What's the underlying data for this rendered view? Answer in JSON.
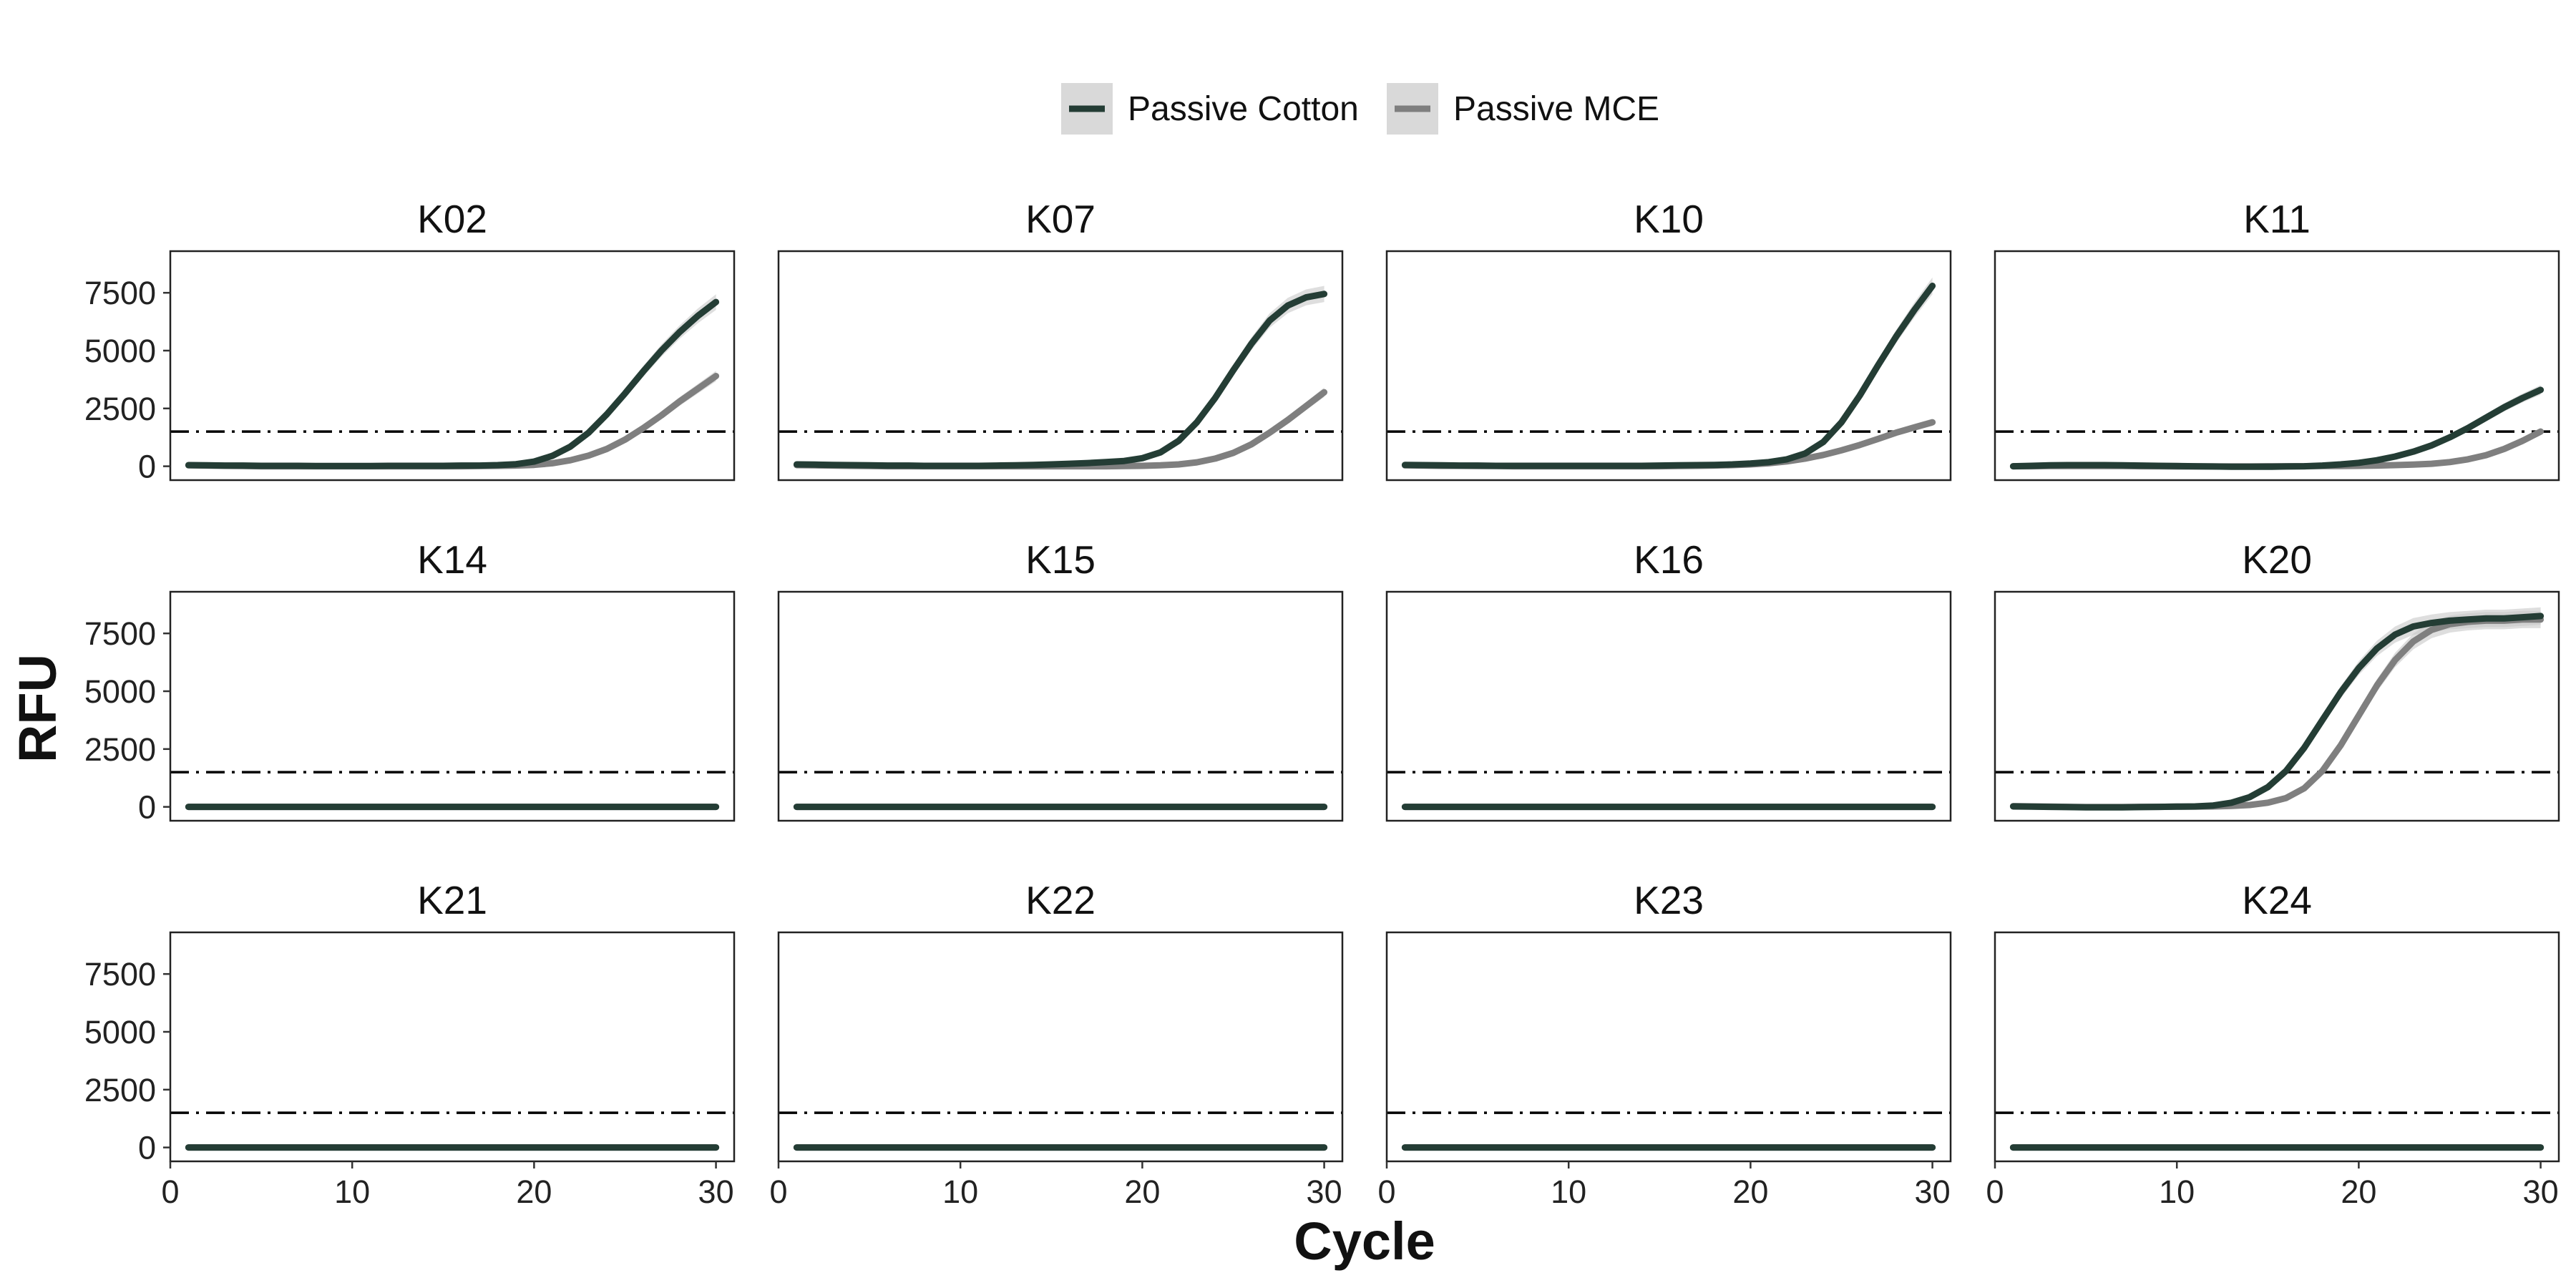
{
  "chart_data": {
    "type": "line",
    "facet_layout": "3 rows x 4 columns",
    "xlabel": "Cycle",
    "ylabel": "RFU",
    "xlim": [
      0,
      31
    ],
    "ylim": [
      -600,
      9300
    ],
    "x_ticks": [
      0,
      10,
      20,
      30
    ],
    "y_ticks": [
      0,
      2500,
      5000,
      7500
    ],
    "threshold": 1500,
    "threshold_style": "dash-dot",
    "legend": {
      "placement": "top-center",
      "items": [
        {
          "name": "Passive Cotton",
          "color": "#243d35"
        },
        {
          "name": "Passive MCE",
          "color": "#7f7f7f"
        }
      ]
    },
    "series_colors": {
      "Passive Cotton": "#243d35",
      "Passive MCE": "#7f7f7f",
      "ribbon": "#c8c8c8"
    },
    "x": [
      1,
      2,
      3,
      4,
      5,
      6,
      7,
      8,
      9,
      10,
      11,
      12,
      13,
      14,
      15,
      16,
      17,
      18,
      19,
      20,
      21,
      22,
      23,
      24,
      25,
      26,
      27,
      28,
      29,
      30
    ],
    "panels": [
      {
        "title": "K02",
        "series": [
          {
            "name": "Passive Cotton",
            "values": [
              50,
              40,
              30,
              30,
              20,
              20,
              20,
              10,
              10,
              10,
              10,
              20,
              20,
              20,
              20,
              30,
              30,
              50,
              90,
              200,
              450,
              850,
              1450,
              2250,
              3150,
              4100,
              5000,
              5800,
              6500,
              7100
            ]
          },
          {
            "name": "Passive MCE",
            "values": [
              40,
              30,
              20,
              10,
              0,
              0,
              0,
              0,
              0,
              0,
              0,
              0,
              0,
              0,
              0,
              0,
              10,
              20,
              30,
              60,
              130,
              260,
              460,
              750,
              1150,
              1650,
              2200,
              2800,
              3350,
              3900
            ]
          }
        ]
      },
      {
        "title": "K07",
        "series": [
          {
            "name": "Passive Cotton",
            "values": [
              80,
              70,
              60,
              50,
              40,
              30,
              30,
              20,
              20,
              20,
              20,
              30,
              40,
              60,
              80,
              110,
              140,
              180,
              230,
              350,
              600,
              1100,
              1900,
              2950,
              4150,
              5300,
              6300,
              6950,
              7300,
              7450
            ]
          },
          {
            "name": "Passive MCE",
            "values": [
              50,
              40,
              30,
              20,
              10,
              0,
              0,
              0,
              0,
              0,
              0,
              0,
              0,
              0,
              0,
              0,
              0,
              0,
              10,
              20,
              40,
              80,
              170,
              330,
              580,
              950,
              1450,
              2000,
              2600,
              3200
            ]
          }
        ]
      },
      {
        "title": "K10",
        "series": [
          {
            "name": "Passive Cotton",
            "values": [
              60,
              50,
              40,
              30,
              30,
              20,
              20,
              20,
              20,
              20,
              20,
              20,
              20,
              20,
              30,
              40,
              50,
              60,
              80,
              120,
              180,
              300,
              550,
              1050,
              1900,
              3050,
              4350,
              5600,
              6750,
              7800
            ]
          },
          {
            "name": "Passive MCE",
            "values": [
              40,
              30,
              20,
              20,
              10,
              10,
              0,
              0,
              0,
              0,
              0,
              0,
              0,
              0,
              0,
              10,
              20,
              30,
              50,
              80,
              130,
              210,
              330,
              490,
              690,
              920,
              1180,
              1450,
              1680,
              1900
            ]
          }
        ]
      },
      {
        "title": "K11",
        "series": [
          {
            "name": "Passive Cotton",
            "values": [
              0,
              20,
              40,
              50,
              50,
              50,
              40,
              30,
              20,
              10,
              0,
              -10,
              -20,
              -20,
              -20,
              -10,
              0,
              30,
              80,
              150,
              260,
              420,
              630,
              900,
              1250,
              1650,
              2100,
              2550,
              2950,
              3300
            ]
          },
          {
            "name": "Passive MCE",
            "values": [
              0,
              0,
              10,
              10,
              10,
              10,
              10,
              0,
              0,
              -10,
              -10,
              -10,
              -10,
              -10,
              0,
              0,
              0,
              10,
              10,
              20,
              30,
              50,
              70,
              110,
              180,
              300,
              480,
              750,
              1100,
              1500
            ]
          }
        ]
      },
      {
        "title": "K14",
        "series": [
          {
            "name": "Passive Cotton",
            "values": [
              0,
              0,
              0,
              0,
              0,
              0,
              0,
              0,
              0,
              0,
              0,
              0,
              0,
              0,
              0,
              0,
              0,
              0,
              0,
              0,
              0,
              0,
              0,
              0,
              0,
              0,
              0,
              0,
              0,
              0
            ]
          },
          {
            "name": "Passive MCE",
            "values": [
              0,
              0,
              0,
              0,
              0,
              0,
              0,
              0,
              0,
              0,
              0,
              0,
              0,
              0,
              0,
              0,
              0,
              0,
              0,
              0,
              0,
              0,
              0,
              0,
              0,
              0,
              0,
              0,
              0,
              0
            ]
          }
        ]
      },
      {
        "title": "K15",
        "series": [
          {
            "name": "Passive Cotton",
            "values": [
              0,
              0,
              0,
              0,
              0,
              0,
              0,
              0,
              0,
              0,
              0,
              0,
              0,
              0,
              0,
              0,
              0,
              0,
              0,
              0,
              0,
              0,
              0,
              0,
              0,
              0,
              0,
              0,
              0,
              0
            ]
          },
          {
            "name": "Passive MCE",
            "values": [
              0,
              0,
              0,
              0,
              0,
              0,
              0,
              0,
              0,
              0,
              0,
              0,
              0,
              0,
              0,
              0,
              0,
              0,
              0,
              0,
              0,
              0,
              0,
              0,
              0,
              0,
              0,
              0,
              0,
              0
            ]
          }
        ]
      },
      {
        "title": "K16",
        "series": [
          {
            "name": "Passive Cotton",
            "values": [
              0,
              0,
              0,
              0,
              0,
              0,
              0,
              0,
              0,
              0,
              0,
              0,
              0,
              0,
              0,
              0,
              0,
              0,
              0,
              0,
              0,
              0,
              0,
              0,
              0,
              0,
              0,
              0,
              0,
              0
            ]
          },
          {
            "name": "Passive MCE",
            "values": [
              0,
              0,
              0,
              0,
              0,
              0,
              0,
              0,
              0,
              0,
              0,
              0,
              0,
              0,
              0,
              0,
              0,
              0,
              0,
              0,
              0,
              0,
              0,
              0,
              0,
              0,
              0,
              0,
              0,
              0
            ]
          }
        ]
      },
      {
        "title": "K20",
        "series": [
          {
            "name": "Passive Cotton",
            "values": [
              20,
              10,
              0,
              -10,
              -20,
              -20,
              -20,
              -10,
              0,
              10,
              20,
              60,
              180,
              420,
              850,
              1550,
              2550,
              3750,
              4950,
              6000,
              6850,
              7450,
              7800,
              7950,
              8050,
              8100,
              8150,
              8150,
              8200,
              8250
            ]
          },
          {
            "name": "Passive MCE",
            "values": [
              30,
              20,
              10,
              0,
              -10,
              -10,
              -10,
              0,
              0,
              10,
              10,
              20,
              40,
              80,
              180,
              380,
              800,
              1550,
              2650,
              3950,
              5250,
              6350,
              7150,
              7650,
              7900,
              8000,
              8050,
              8050,
              8100,
              8100
            ]
          }
        ]
      },
      {
        "title": "K21",
        "series": [
          {
            "name": "Passive Cotton",
            "values": [
              0,
              0,
              0,
              0,
              0,
              0,
              0,
              0,
              0,
              0,
              0,
              0,
              0,
              0,
              0,
              0,
              0,
              0,
              0,
              0,
              0,
              0,
              0,
              0,
              0,
              0,
              0,
              0,
              0,
              0
            ]
          },
          {
            "name": "Passive MCE",
            "values": [
              0,
              0,
              0,
              0,
              0,
              0,
              0,
              0,
              0,
              0,
              0,
              0,
              0,
              0,
              0,
              0,
              0,
              0,
              0,
              0,
              0,
              0,
              0,
              0,
              0,
              0,
              0,
              0,
              0,
              0
            ]
          }
        ]
      },
      {
        "title": "K22",
        "series": [
          {
            "name": "Passive Cotton",
            "values": [
              0,
              0,
              0,
              0,
              0,
              0,
              0,
              0,
              0,
              0,
              0,
              0,
              0,
              0,
              0,
              0,
              0,
              0,
              0,
              0,
              0,
              0,
              0,
              0,
              0,
              0,
              0,
              0,
              0,
              0
            ]
          },
          {
            "name": "Passive MCE",
            "values": [
              0,
              0,
              0,
              0,
              0,
              0,
              0,
              0,
              0,
              0,
              0,
              0,
              0,
              0,
              0,
              0,
              0,
              0,
              0,
              0,
              0,
              0,
              0,
              0,
              0,
              0,
              0,
              0,
              0,
              0
            ]
          }
        ]
      },
      {
        "title": "K23",
        "series": [
          {
            "name": "Passive Cotton",
            "values": [
              0,
              0,
              0,
              0,
              0,
              0,
              0,
              0,
              0,
              0,
              0,
              0,
              0,
              0,
              0,
              0,
              0,
              0,
              0,
              0,
              0,
              0,
              0,
              0,
              0,
              0,
              0,
              0,
              0,
              0
            ]
          },
          {
            "name": "Passive MCE",
            "values": [
              0,
              0,
              0,
              0,
              0,
              0,
              0,
              0,
              0,
              0,
              0,
              0,
              0,
              0,
              0,
              0,
              0,
              0,
              0,
              0,
              0,
              0,
              0,
              0,
              0,
              0,
              0,
              0,
              0,
              0
            ]
          }
        ]
      },
      {
        "title": "K24",
        "series": [
          {
            "name": "Passive Cotton",
            "values": [
              0,
              0,
              0,
              0,
              0,
              0,
              0,
              0,
              0,
              0,
              0,
              0,
              0,
              0,
              0,
              0,
              0,
              0,
              0,
              0,
              0,
              0,
              0,
              0,
              0,
              0,
              0,
              0,
              0,
              0
            ]
          },
          {
            "name": "Passive MCE",
            "values": [
              0,
              0,
              0,
              0,
              0,
              0,
              0,
              0,
              0,
              0,
              0,
              0,
              0,
              0,
              0,
              0,
              0,
              0,
              0,
              0,
              0,
              0,
              0,
              0,
              0,
              0,
              0,
              0,
              0,
              0
            ]
          }
        ]
      }
    ]
  }
}
